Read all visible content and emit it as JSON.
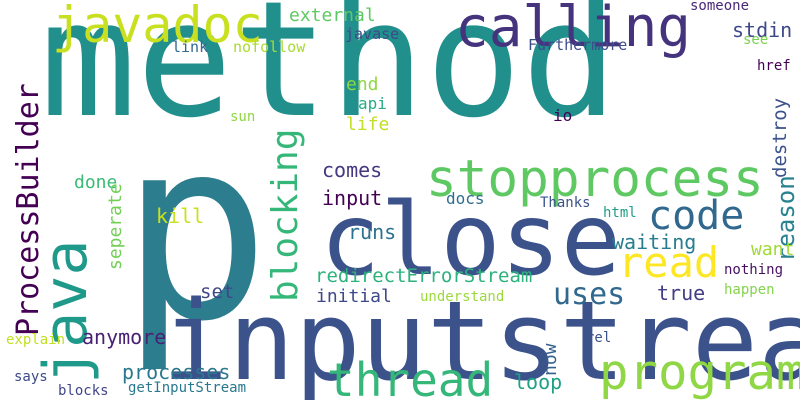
{
  "words": [
    {
      "id": "method",
      "text": "method",
      "color": "#21908d"
    },
    {
      "id": "p",
      "text": "p",
      "color": "#2c7e8e"
    },
    {
      "id": "inputstream",
      "text": "inputstream",
      "color": "#3b528b"
    },
    {
      "id": "close",
      "text": "close",
      "color": "#3b528b"
    },
    {
      "id": "java",
      "text": "java",
      "color": "#1f9a8a"
    },
    {
      "id": "calling",
      "text": "calling",
      "color": "#46337e"
    },
    {
      "id": "javadoc",
      "text": "javadoc",
      "color": "#c8e020"
    },
    {
      "id": "stopprocess",
      "text": "stopprocess",
      "color": "#5ec962"
    },
    {
      "id": "program",
      "text": "program",
      "color": "#8fd744"
    },
    {
      "id": "thread",
      "text": "thread",
      "color": "#35b779"
    },
    {
      "id": "code",
      "text": "code",
      "color": "#31688e"
    },
    {
      "id": "read",
      "text": "read",
      "color": "#fde725"
    },
    {
      "id": "ProcessBuilder",
      "text": "ProcessBuilder",
      "color": "#440154"
    },
    {
      "id": "blocking",
      "text": "blocking",
      "color": "#35b779"
    },
    {
      "id": "uses",
      "text": "uses",
      "color": "#31688e"
    },
    {
      "id": "reason",
      "text": "reason",
      "color": "#26828e"
    },
    {
      "id": "destroy",
      "text": "destroy",
      "color": "#3b528b"
    },
    {
      "id": "stdin",
      "text": "stdin",
      "color": "#3e4989"
    },
    {
      "id": "waiting",
      "text": "waiting",
      "color": "#287d8e"
    },
    {
      "id": "redirectErrorStream",
      "text": "redirectErrorStream",
      "color": "#2db27d"
    },
    {
      "id": "input",
      "text": "input",
      "color": "#440154"
    },
    {
      "id": "processes",
      "text": "processes",
      "color": "#2a788e"
    },
    {
      "id": "anymore",
      "text": "anymore",
      "color": "#482173"
    },
    {
      "id": "initial",
      "text": "initial",
      "color": "#3e4989"
    },
    {
      "id": "want",
      "text": "want",
      "color": "#a0da39"
    },
    {
      "id": "true",
      "text": "true",
      "color": "#433e85"
    },
    {
      "id": "runs",
      "text": "runs",
      "color": "#2c728e"
    },
    {
      "id": "comes",
      "text": "comes",
      "color": "#453781"
    },
    {
      "id": "loop",
      "text": "loop",
      "color": "#1fa187"
    },
    {
      "id": "now",
      "text": "now",
      "color": "#34618d"
    },
    {
      "id": "set",
      "text": "set",
      "color": "#3f4788"
    },
    {
      "id": "kill",
      "text": "kill",
      "color": "#c8e020"
    },
    {
      "id": "done",
      "text": "done",
      "color": "#3aba76"
    },
    {
      "id": "seperate",
      "text": "seperate",
      "color": "#73d056"
    },
    {
      "id": "external",
      "text": "external",
      "color": "#5ec962"
    },
    {
      "id": "life",
      "text": "life",
      "color": "#c0df25"
    },
    {
      "id": "end",
      "text": "end",
      "color": "#8fd744"
    },
    {
      "id": "api",
      "text": "api",
      "color": "#25ac82"
    },
    {
      "id": "io",
      "text": "io",
      "color": "#440154"
    },
    {
      "id": "sun",
      "text": "sun",
      "color": "#8fd744"
    },
    {
      "id": "docs",
      "text": "docs",
      "color": "#2e6e8e"
    },
    {
      "id": "Thanks",
      "text": "Thanks",
      "color": "#3b528b"
    },
    {
      "id": "html",
      "text": "html",
      "color": "#1f9e89"
    },
    {
      "id": "javase",
      "text": "javase",
      "color": "#3e4989"
    },
    {
      "id": "Furthermore",
      "text": "Furthermore",
      "color": "#3d4d8a"
    },
    {
      "id": "link",
      "text": "link",
      "color": "#31688e"
    },
    {
      "id": "nofollow",
      "text": "nofollow",
      "color": "#a8db34"
    },
    {
      "id": "someone",
      "text": "someone",
      "color": "#482878"
    },
    {
      "id": "see",
      "text": "see",
      "color": "#7ad151"
    },
    {
      "id": "href",
      "text": "href",
      "color": "#440154"
    },
    {
      "id": "nothing",
      "text": "nothing",
      "color": "#471063"
    },
    {
      "id": "happen",
      "text": "happen",
      "color": "#84d44b"
    },
    {
      "id": "understand",
      "text": "understand",
      "color": "#9bd93c"
    },
    {
      "id": "explain",
      "text": "explain",
      "color": "#c2df23"
    },
    {
      "id": "rel",
      "text": "rel",
      "color": "#3a548c"
    },
    {
      "id": "says",
      "text": "says",
      "color": "#3e4a89"
    },
    {
      "id": "blocks",
      "text": "blocks",
      "color": "#404688"
    },
    {
      "id": "getInputStream",
      "text": "getInputStream",
      "color": "#2a788e"
    }
  ]
}
